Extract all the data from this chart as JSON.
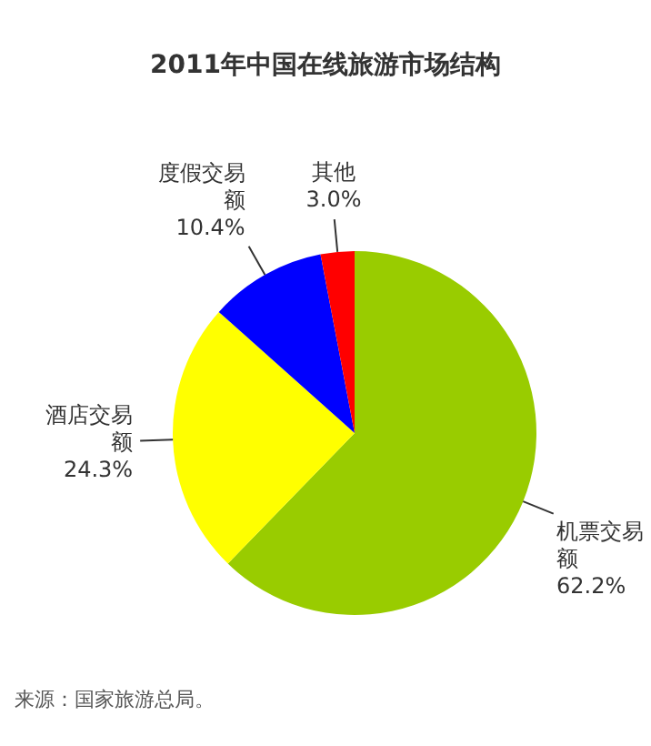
{
  "chart_data": {
    "type": "pie",
    "title": "2011年中国在线旅游市场结构",
    "categories": [
      "机票交易额",
      "酒店交易额",
      "度假交易额",
      "其他"
    ],
    "values": [
      62.2,
      24.3,
      10.4,
      3.0
    ],
    "colors": [
      "#99cc00",
      "#ffff00",
      "#0000ff",
      "#ff0000"
    ],
    "value_labels": [
      "62.2%",
      "24.3%",
      "10.4%",
      "3.0%"
    ],
    "annotations": [
      "来源：国家旅游总局。"
    ]
  }
}
